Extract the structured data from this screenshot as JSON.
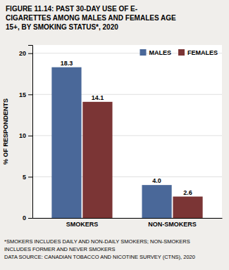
{
  "chart_data": {
    "type": "bar",
    "title": "FIGURE 11.14: PAST 30-DAY USE OF E-\nCIGARETTES AMONG MALES AND FEMALES AGE\n15+, BY SMOKING STATUS*, 2020",
    "y_label": "% OF RESPONDENTS",
    "categories": [
      "SMOKERS",
      "NON-SMOKERS"
    ],
    "series": [
      {
        "name": "MALES",
        "color": "#4a6899",
        "values": [
          18.3,
          4.0
        ],
        "value_labels": [
          "18.3",
          "4.0"
        ]
      },
      {
        "name": "FEMALES",
        "color": "#7b3535",
        "values": [
          14.1,
          2.6
        ],
        "value_labels": [
          "14.1",
          "2.6"
        ]
      }
    ],
    "ylim": [
      0,
      21
    ],
    "yticks": [
      0,
      5,
      10,
      15,
      20
    ],
    "grid": true,
    "legend": "upper right",
    "data_labels": true,
    "footnote": "*SMOKERS INCLUDES DAILY AND NON-DAILY SMOKERS; NON-SMOKERS\nINCLUDES FORMER AND NEVER SMOKERS\nDATA SOURCE: CANADIAN TOBACCO AND NICOTINE SURVEY (CTNS), 2020"
  }
}
